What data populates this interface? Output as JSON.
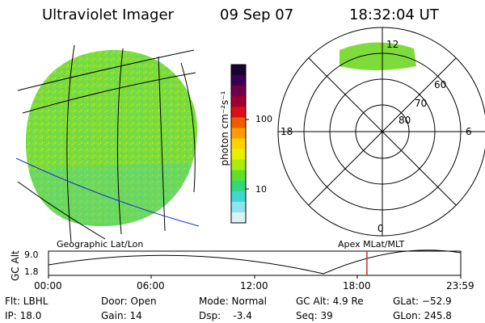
{
  "header": {
    "instrument": "Ultraviolet Imager",
    "date": "09 Sep 07",
    "time": "18:32:04 UT"
  },
  "left_panel": {
    "caption": "Geographic Lat/Lon"
  },
  "colorbar": {
    "unit_label": "photon cm⁻²s⁻¹",
    "tick_labels": [
      "100",
      "10"
    ],
    "colors_top_to_bottom": [
      "#1a0033",
      "#3a0050",
      "#70004a",
      "#a00030",
      "#d8101a",
      "#f25a00",
      "#ff9a00",
      "#ffd200",
      "#e6f000",
      "#a8ec10",
      "#5ee02a",
      "#30d87a",
      "#40d6d0",
      "#8ae6ec",
      "#d8f2f6"
    ]
  },
  "right_panel": {
    "caption": "Apex MLat/MLT",
    "mlt_labels": {
      "top": "12",
      "left": "18",
      "right": "6",
      "bottom": "0"
    },
    "lat_labels": [
      "60",
      "70",
      "80"
    ]
  },
  "timeline": {
    "ylabel": "GC Alt",
    "y_ticks": [
      "9.0",
      "1.8"
    ],
    "x_ticks": [
      "00:00",
      "06:00",
      "12:00",
      "18:00",
      "23:59"
    ],
    "current_time_fraction": 0.7723,
    "marker_color": "#c03030"
  },
  "status": {
    "flt": "Flt: LBHL",
    "ip": "IP: 18.0",
    "door": "Door: Open",
    "gain": "Gain: 14",
    "mode": "Mode: Normal",
    "dsp": "Dsp:    -3.4",
    "gcalt": "GC Alt: 4.9 Re",
    "seq": "Seq: 39",
    "glat": "GLat: −52.9",
    "glon": "GLon: 245.8"
  }
}
